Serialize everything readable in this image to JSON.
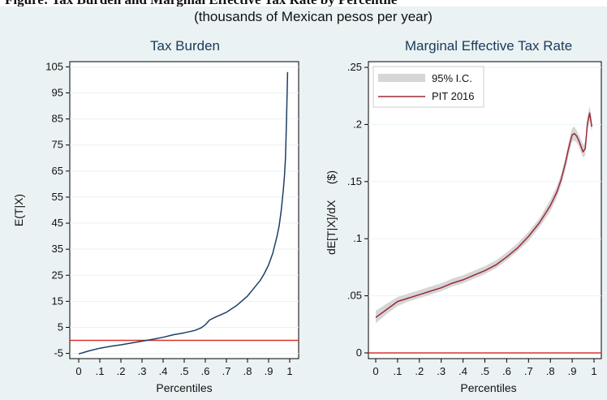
{
  "figure": {
    "cut_heading": "Figure: Tax Burden and Marginal Effective Tax Rate by Percentile",
    "subtitle": "(thousands of Mexican pesos per year)"
  },
  "chart_data": [
    {
      "type": "line",
      "title": "Tax Burden",
      "xlabel": "Percentiles",
      "ylabel": "E(T|X)",
      "xlim": [
        0,
        1
      ],
      "ylim": [
        -7,
        107
      ],
      "xticks": [
        0,
        0.1,
        0.2,
        0.3,
        0.4,
        0.5,
        0.6,
        0.7,
        0.8,
        0.9,
        1
      ],
      "xtick_labels": [
        "0",
        ".1",
        ".2",
        ".3",
        ".4",
        ".5",
        ".6",
        ".7",
        ".8",
        ".9",
        "1"
      ],
      "yticks": [
        -5,
        5,
        15,
        25,
        35,
        45,
        55,
        65,
        75,
        85,
        95,
        105
      ],
      "ytick_labels": [
        "-5",
        "5",
        "15",
        "25",
        "35",
        "45",
        "55",
        "65",
        "75",
        "85",
        "95",
        "105"
      ],
      "grid": true,
      "reference_line": {
        "y": 0,
        "color": "#d9322c"
      },
      "series": [
        {
          "color": "#1e3f66",
          "x": [
            0.0,
            0.05,
            0.1,
            0.15,
            0.2,
            0.25,
            0.3,
            0.35,
            0.4,
            0.45,
            0.5,
            0.55,
            0.58,
            0.6,
            0.62,
            0.65,
            0.7,
            0.75,
            0.8,
            0.83,
            0.86,
            0.88,
            0.9,
            0.92,
            0.94,
            0.95,
            0.96,
            0.97,
            0.975,
            0.98,
            0.985,
            0.99
          ],
          "y": [
            -5.2,
            -4.0,
            -3.0,
            -2.3,
            -1.7,
            -1.0,
            -0.3,
            0.4,
            1.2,
            2.2,
            2.9,
            3.8,
            4.8,
            6.0,
            7.8,
            9.0,
            10.8,
            13.5,
            17.0,
            20.0,
            23.0,
            25.7,
            29.0,
            33.5,
            40.0,
            44.0,
            50.0,
            58.0,
            63.0,
            70.0,
            85.0,
            103.0
          ]
        }
      ]
    },
    {
      "type": "line",
      "title": "Marginal Effective Tax Rate",
      "xlabel": "Percentiles",
      "ylabel": "dE[T|X]/dX     ($)",
      "xlim": [
        0,
        1
      ],
      "ylim": [
        -0.005,
        0.255
      ],
      "xticks": [
        0,
        0.1,
        0.2,
        0.3,
        0.4,
        0.5,
        0.6,
        0.7,
        0.8,
        0.9,
        1
      ],
      "xtick_labels": [
        "0",
        ".1",
        ".2",
        ".3",
        ".4",
        ".5",
        ".6",
        ".7",
        ".8",
        ".9",
        "1"
      ],
      "yticks": [
        0,
        0.05,
        0.1,
        0.15,
        0.2,
        0.25
      ],
      "ytick_labels": [
        "0",
        ".05",
        ".1",
        ".15",
        ".2",
        ".25"
      ],
      "grid": true,
      "reference_line": {
        "y": 0,
        "color": "#d9322c"
      },
      "legend": {
        "placement": "top-left",
        "entries": [
          {
            "label": "95% I.C.",
            "kind": "band",
            "color": "#d6d6d6"
          },
          {
            "label": "PIT 2016",
            "kind": "line",
            "color": "#9a2a37"
          }
        ]
      },
      "band": {
        "color": "#d6d6d6",
        "x": [
          0.0,
          0.05,
          0.1,
          0.15,
          0.2,
          0.25,
          0.3,
          0.35,
          0.4,
          0.45,
          0.5,
          0.55,
          0.6,
          0.65,
          0.7,
          0.75,
          0.8,
          0.83,
          0.85,
          0.87,
          0.88,
          0.89,
          0.9,
          0.91,
          0.92,
          0.93,
          0.94,
          0.95,
          0.96,
          0.97,
          0.98,
          0.99
        ],
        "lower": [
          0.026,
          0.034,
          0.041,
          0.045,
          0.048,
          0.051,
          0.054,
          0.058,
          0.061,
          0.065,
          0.069,
          0.074,
          0.081,
          0.089,
          0.098,
          0.11,
          0.124,
          0.136,
          0.147,
          0.161,
          0.17,
          0.178,
          0.185,
          0.186,
          0.184,
          0.181,
          0.176,
          0.171,
          0.173,
          0.195,
          0.203,
          0.193
        ],
        "upper": [
          0.037,
          0.043,
          0.049,
          0.052,
          0.055,
          0.058,
          0.061,
          0.065,
          0.068,
          0.072,
          0.076,
          0.081,
          0.088,
          0.096,
          0.106,
          0.118,
          0.134,
          0.146,
          0.157,
          0.172,
          0.181,
          0.19,
          0.197,
          0.198,
          0.195,
          0.191,
          0.187,
          0.182,
          0.185,
          0.207,
          0.216,
          0.204
        ]
      },
      "series": [
        {
          "name": "PIT 2016",
          "color": "#9a2a37",
          "x": [
            0.0,
            0.05,
            0.1,
            0.15,
            0.2,
            0.25,
            0.3,
            0.35,
            0.4,
            0.45,
            0.5,
            0.55,
            0.6,
            0.65,
            0.7,
            0.75,
            0.8,
            0.83,
            0.85,
            0.87,
            0.88,
            0.89,
            0.9,
            0.91,
            0.92,
            0.93,
            0.94,
            0.95,
            0.96,
            0.97,
            0.98,
            0.99
          ],
          "y": [
            0.031,
            0.038,
            0.045,
            0.048,
            0.051,
            0.054,
            0.057,
            0.061,
            0.064,
            0.068,
            0.072,
            0.077,
            0.084,
            0.092,
            0.102,
            0.114,
            0.129,
            0.141,
            0.152,
            0.167,
            0.176,
            0.184,
            0.191,
            0.192,
            0.19,
            0.186,
            0.181,
            0.176,
            0.179,
            0.201,
            0.21,
            0.198
          ]
        }
      ]
    }
  ]
}
